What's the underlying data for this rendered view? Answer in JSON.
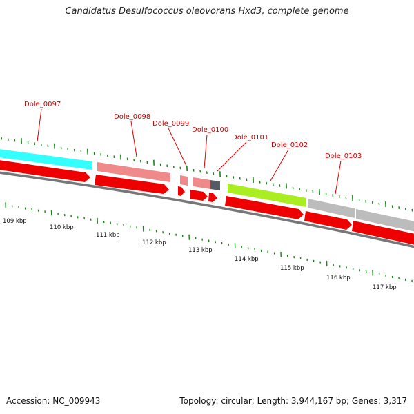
{
  "title": "Candidatus Desulfococcus oleovorans Hxd3, complete genome",
  "footer": {
    "accession": "Accession: NC_009943",
    "stats": "Topology: circular; Length: 3,944,167 bp; Genes: 3,317"
  },
  "genes": [
    {
      "name": "Dole_0097"
    },
    {
      "name": "Dole_0098"
    },
    {
      "name": "Dole_0099"
    },
    {
      "name": "Dole_0100"
    },
    {
      "name": "Dole_0101"
    },
    {
      "name": "Dole_0102"
    },
    {
      "name": "Dole_0103"
    }
  ],
  "scale": [
    {
      "label": "109 kbp"
    },
    {
      "label": "110 kbp"
    },
    {
      "label": "111 kbp"
    },
    {
      "label": "112 kbp"
    },
    {
      "label": "113 kbp"
    },
    {
      "label": "114 kbp"
    },
    {
      "label": "115 kbp"
    },
    {
      "label": "116 kbp"
    },
    {
      "label": "117 kbp"
    }
  ],
  "colors": {
    "cog_cyan": "#33ffff",
    "cog_pink": "#f08a8a",
    "cog_dark": "#555b66",
    "cog_green": "#aaee22",
    "cog_gray": "#bcbcbc",
    "cds": "#ee0000",
    "backbone": "#777777",
    "tick": "#118811",
    "label": "#dd0000"
  }
}
